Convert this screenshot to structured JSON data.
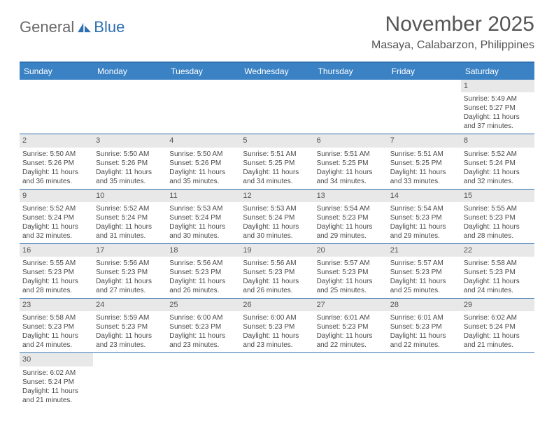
{
  "brand": {
    "part1": "General",
    "part2": "Blue"
  },
  "title": "November 2025",
  "location": "Masaya, Calabarzon, Philippines",
  "colors": {
    "header_bg": "#3b82c4",
    "accent": "#2f6fb0",
    "daynum_bg": "#e8e8e8",
    "text": "#4a4a4a"
  },
  "weekdays": [
    "Sunday",
    "Monday",
    "Tuesday",
    "Wednesday",
    "Thursday",
    "Friday",
    "Saturday"
  ],
  "weeks": [
    [
      null,
      null,
      null,
      null,
      null,
      null,
      {
        "n": "1",
        "sr": "5:49 AM",
        "ss": "5:27 PM",
        "dl": "11 hours",
        "dm": "37 minutes."
      }
    ],
    [
      {
        "n": "2",
        "sr": "5:50 AM",
        "ss": "5:26 PM",
        "dl": "11 hours",
        "dm": "36 minutes."
      },
      {
        "n": "3",
        "sr": "5:50 AM",
        "ss": "5:26 PM",
        "dl": "11 hours",
        "dm": "35 minutes."
      },
      {
        "n": "4",
        "sr": "5:50 AM",
        "ss": "5:26 PM",
        "dl": "11 hours",
        "dm": "35 minutes."
      },
      {
        "n": "5",
        "sr": "5:51 AM",
        "ss": "5:25 PM",
        "dl": "11 hours",
        "dm": "34 minutes."
      },
      {
        "n": "6",
        "sr": "5:51 AM",
        "ss": "5:25 PM",
        "dl": "11 hours",
        "dm": "34 minutes."
      },
      {
        "n": "7",
        "sr": "5:51 AM",
        "ss": "5:25 PM",
        "dl": "11 hours",
        "dm": "33 minutes."
      },
      {
        "n": "8",
        "sr": "5:52 AM",
        "ss": "5:24 PM",
        "dl": "11 hours",
        "dm": "32 minutes."
      }
    ],
    [
      {
        "n": "9",
        "sr": "5:52 AM",
        "ss": "5:24 PM",
        "dl": "11 hours",
        "dm": "32 minutes."
      },
      {
        "n": "10",
        "sr": "5:52 AM",
        "ss": "5:24 PM",
        "dl": "11 hours",
        "dm": "31 minutes."
      },
      {
        "n": "11",
        "sr": "5:53 AM",
        "ss": "5:24 PM",
        "dl": "11 hours",
        "dm": "30 minutes."
      },
      {
        "n": "12",
        "sr": "5:53 AM",
        "ss": "5:24 PM",
        "dl": "11 hours",
        "dm": "30 minutes."
      },
      {
        "n": "13",
        "sr": "5:54 AM",
        "ss": "5:23 PM",
        "dl": "11 hours",
        "dm": "29 minutes."
      },
      {
        "n": "14",
        "sr": "5:54 AM",
        "ss": "5:23 PM",
        "dl": "11 hours",
        "dm": "29 minutes."
      },
      {
        "n": "15",
        "sr": "5:55 AM",
        "ss": "5:23 PM",
        "dl": "11 hours",
        "dm": "28 minutes."
      }
    ],
    [
      {
        "n": "16",
        "sr": "5:55 AM",
        "ss": "5:23 PM",
        "dl": "11 hours",
        "dm": "28 minutes."
      },
      {
        "n": "17",
        "sr": "5:56 AM",
        "ss": "5:23 PM",
        "dl": "11 hours",
        "dm": "27 minutes."
      },
      {
        "n": "18",
        "sr": "5:56 AM",
        "ss": "5:23 PM",
        "dl": "11 hours",
        "dm": "26 minutes."
      },
      {
        "n": "19",
        "sr": "5:56 AM",
        "ss": "5:23 PM",
        "dl": "11 hours",
        "dm": "26 minutes."
      },
      {
        "n": "20",
        "sr": "5:57 AM",
        "ss": "5:23 PM",
        "dl": "11 hours",
        "dm": "25 minutes."
      },
      {
        "n": "21",
        "sr": "5:57 AM",
        "ss": "5:23 PM",
        "dl": "11 hours",
        "dm": "25 minutes."
      },
      {
        "n": "22",
        "sr": "5:58 AM",
        "ss": "5:23 PM",
        "dl": "11 hours",
        "dm": "24 minutes."
      }
    ],
    [
      {
        "n": "23",
        "sr": "5:58 AM",
        "ss": "5:23 PM",
        "dl": "11 hours",
        "dm": "24 minutes."
      },
      {
        "n": "24",
        "sr": "5:59 AM",
        "ss": "5:23 PM",
        "dl": "11 hours",
        "dm": "23 minutes."
      },
      {
        "n": "25",
        "sr": "6:00 AM",
        "ss": "5:23 PM",
        "dl": "11 hours",
        "dm": "23 minutes."
      },
      {
        "n": "26",
        "sr": "6:00 AM",
        "ss": "5:23 PM",
        "dl": "11 hours",
        "dm": "23 minutes."
      },
      {
        "n": "27",
        "sr": "6:01 AM",
        "ss": "5:23 PM",
        "dl": "11 hours",
        "dm": "22 minutes."
      },
      {
        "n": "28",
        "sr": "6:01 AM",
        "ss": "5:23 PM",
        "dl": "11 hours",
        "dm": "22 minutes."
      },
      {
        "n": "29",
        "sr": "6:02 AM",
        "ss": "5:24 PM",
        "dl": "11 hours",
        "dm": "21 minutes."
      }
    ],
    [
      {
        "n": "30",
        "sr": "6:02 AM",
        "ss": "5:24 PM",
        "dl": "11 hours",
        "dm": "21 minutes."
      },
      null,
      null,
      null,
      null,
      null,
      null
    ]
  ],
  "labels": {
    "sunrise": "Sunrise:",
    "sunset": "Sunset:",
    "daylight": "Daylight:",
    "and": "and"
  }
}
